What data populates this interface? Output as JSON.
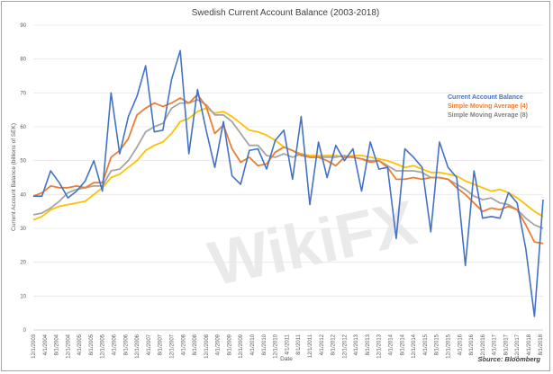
{
  "chart_data": {
    "type": "line",
    "title": "Swedish Current Account Balance (2003-2018)",
    "xlabel": "Date",
    "ylabel": "Current Account Balance (billions of SEK)",
    "ylim": [
      0,
      90
    ],
    "yticks": [
      0,
      10,
      20,
      30,
      40,
      50,
      60,
      70,
      80,
      90
    ],
    "grid": true,
    "legend_position": "right",
    "source": "Source: Bloomberg",
    "watermark": "WikiFX",
    "x_tick_labels": [
      "12/1/2003",
      "4/1/2004",
      "8/1/2004",
      "12/1/2004",
      "4/1/2005",
      "8/1/2005",
      "12/1/2005",
      "4/1/2006",
      "8/1/2006",
      "12/1/2006",
      "4/1/2007",
      "8/1/2007",
      "12/1/2007",
      "4/1/2008",
      "8/1/2008",
      "12/1/2008",
      "4/1/2009",
      "8/1/2009",
      "12/1/2009",
      "4/1/2010",
      "8/1/2010",
      "12/1/2010",
      "4/1/2011",
      "8/1/2011",
      "12/1/2011",
      "4/1/2012",
      "8/1/2012",
      "12/1/2012",
      "4/1/2013",
      "8/1/2013",
      "12/1/2013",
      "4/1/2014",
      "8/1/2014",
      "12/1/2014",
      "4/1/2015",
      "8/1/2015",
      "12/1/2015",
      "4/1/2016",
      "8/1/2016",
      "12/1/2016",
      "4/1/2017",
      "8/1/2017",
      "12/1/2017",
      "4/1/2018",
      "8/1/2018"
    ],
    "x_interval_months": 3,
    "series": [
      {
        "name": "Current Account Balance",
        "color": "#4472c4",
        "values": [
          39.5,
          39.5,
          47,
          43.5,
          39,
          41,
          44,
          50,
          41,
          70,
          52,
          63,
          69,
          78,
          58.5,
          59,
          74,
          82.5,
          52,
          71,
          59,
          48,
          61.5,
          45.5,
          43,
          53,
          53.5,
          47.5,
          56,
          59,
          44.5,
          63,
          37,
          55.5,
          45,
          54.5,
          50,
          53.5,
          41,
          55.5,
          47.5,
          48,
          27,
          53.5,
          51,
          48,
          29,
          55.5,
          48,
          45,
          19,
          47,
          33,
          33.5,
          33,
          40.5,
          37.5,
          24,
          4,
          38.5
        ]
      },
      {
        "name": "Simple Moving Average (4)",
        "color": "#ed7d31",
        "values": [
          39.5,
          40.5,
          42.5,
          42,
          42,
          42.5,
          42,
          43.5,
          43.5,
          51,
          53,
          56.5,
          63.5,
          65.5,
          67,
          66,
          67,
          68.5,
          67,
          69.5,
          66,
          58,
          60.5,
          53.5,
          49.5,
          51,
          48.5,
          49,
          52.5,
          54,
          53,
          51.5,
          51,
          51,
          50,
          48.5,
          51,
          51,
          50.5,
          49.5,
          50,
          48,
          44.5,
          44.5,
          45,
          44.5,
          45,
          45,
          44.5,
          42,
          40,
          37.5,
          35,
          36,
          35.5,
          36.5,
          35.5,
          31,
          26,
          25.5
        ]
      },
      {
        "name": "Simple Moving Average (8)",
        "color": "#a5a5a5",
        "values": [
          34,
          34.5,
          36,
          38,
          40.5,
          41.5,
          42,
          42.5,
          42.5,
          47,
          47.5,
          50,
          54,
          58.5,
          60,
          61,
          65.5,
          67,
          67,
          68,
          66.5,
          63.5,
          63.5,
          61.5,
          58,
          54.5,
          54.5,
          51.5,
          51,
          52,
          51,
          52,
          51,
          51,
          51,
          51,
          51.5,
          51,
          50.5,
          50,
          50,
          48.5,
          47,
          47,
          47,
          46.5,
          45,
          45,
          44.5,
          43,
          41.5,
          39.5,
          38.5,
          39,
          37.5,
          37,
          35.5,
          33,
          31,
          30
        ]
      },
      {
        "name": "",
        "color": "#ffc000",
        "values": [
          32.5,
          33.5,
          35.5,
          36.5,
          37,
          37.5,
          38,
          40,
          42,
          45,
          46,
          48,
          50,
          53,
          54.5,
          55.5,
          58,
          61.5,
          62.5,
          64.5,
          65.5,
          64,
          64.5,
          63,
          61,
          59,
          58.5,
          57.5,
          56,
          54,
          53,
          52,
          51.5,
          51.5,
          51.5,
          51.5,
          51,
          51.5,
          51.5,
          51,
          50.5,
          50,
          49,
          48,
          48.5,
          47.5,
          46.5,
          46.5,
          46,
          45.5,
          44,
          43,
          42,
          41,
          41.5,
          40.5,
          39,
          37,
          35,
          33.5
        ]
      }
    ]
  }
}
